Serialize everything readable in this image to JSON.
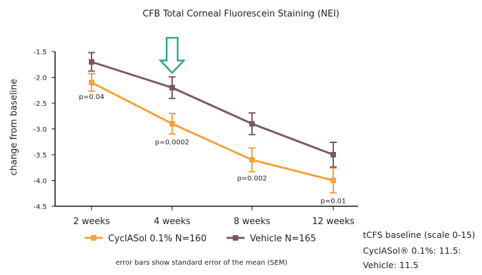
{
  "chart_data": {
    "type": "line",
    "title": "CFB Total Corneal Fluorescein Staining (NEI)",
    "xlabel": "",
    "ylabel": "change from baseline",
    "categories": [
      "2 weeks",
      "4 weeks",
      "8 weeks",
      "12 weeks"
    ],
    "ylim": [
      -4.5,
      -1.5
    ],
    "yticks": [
      "-1.5",
      "-2.0",
      "-2.5",
      "-3.0",
      "-3.5",
      "-4.0",
      "-4.5"
    ],
    "grid": false,
    "legend_position": "bottom",
    "series": [
      {
        "name": "CyclASol 0.1% N=160",
        "color": "#F5A23C",
        "marker": "square",
        "values": [
          -2.1,
          -2.9,
          -3.6,
          -4.0
        ],
        "errors": [
          0.17,
          0.2,
          0.23,
          0.24
        ]
      },
      {
        "name": "Vehicle N=165",
        "color": "#7A5A5A",
        "marker": "square",
        "values": [
          -1.7,
          -2.2,
          -2.9,
          -3.5
        ],
        "errors": [
          0.18,
          0.21,
          0.21,
          0.24
        ]
      }
    ],
    "p_values": [
      "p=0.04",
      "p=0.0002",
      "p=0.002",
      "p=0.01"
    ],
    "arrow": {
      "at_category": "4 weeks",
      "color": "#2FA68B"
    },
    "footnote": "error bars show standard error of the mean (SEM)",
    "baseline_note": {
      "title": "tCFS baseline (scale 0-15)",
      "line1": "CyclASol® 0.1%: 11.5:",
      "line2": "Vehicle: 11.5"
    }
  }
}
